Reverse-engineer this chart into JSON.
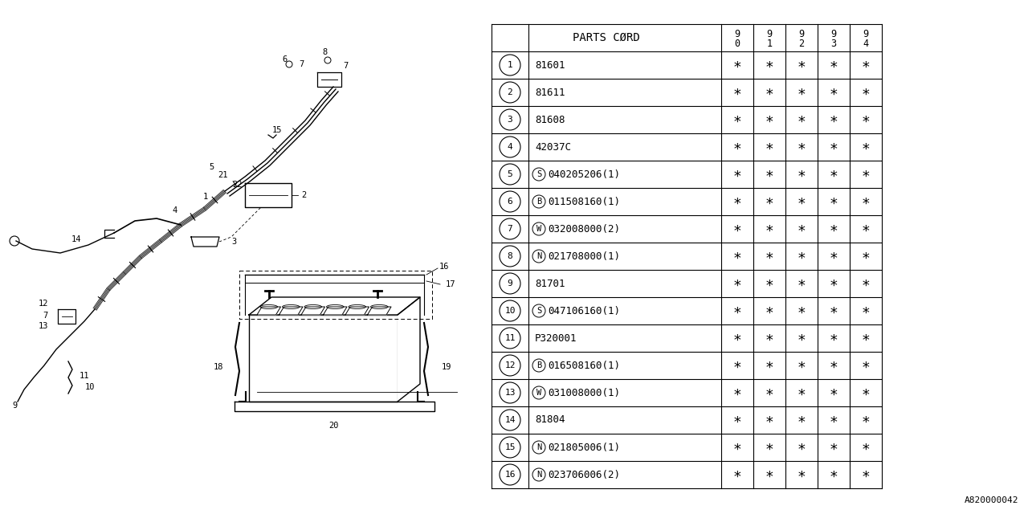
{
  "rows": [
    {
      "num": "1",
      "prefix": "",
      "ptype": "",
      "code": "81601"
    },
    {
      "num": "2",
      "prefix": "",
      "ptype": "",
      "code": "81611"
    },
    {
      "num": "3",
      "prefix": "",
      "ptype": "",
      "code": "81608"
    },
    {
      "num": "4",
      "prefix": "",
      "ptype": "",
      "code": "42037C"
    },
    {
      "num": "5",
      "prefix": "S",
      "ptype": "S",
      "code": "040205206(1)"
    },
    {
      "num": "6",
      "prefix": "B",
      "ptype": "B",
      "code": "011508160(1)"
    },
    {
      "num": "7",
      "prefix": "W",
      "ptype": "W",
      "code": "032008000(2)"
    },
    {
      "num": "8",
      "prefix": "N",
      "ptype": "N",
      "code": "021708000(1)"
    },
    {
      "num": "9",
      "prefix": "",
      "ptype": "",
      "code": "81701"
    },
    {
      "num": "10",
      "prefix": "S",
      "ptype": "S",
      "code": "047106160(1)"
    },
    {
      "num": "11",
      "prefix": "",
      "ptype": "",
      "code": "P320001"
    },
    {
      "num": "12",
      "prefix": "B",
      "ptype": "B",
      "code": "016508160(1)"
    },
    {
      "num": "13",
      "prefix": "W",
      "ptype": "W",
      "code": "031008000(1)"
    },
    {
      "num": "14",
      "prefix": "",
      "ptype": "",
      "code": "81804"
    },
    {
      "num": "15",
      "prefix": "N",
      "ptype": "N",
      "code": "021805006(1)"
    },
    {
      "num": "16",
      "prefix": "N",
      "ptype": "N",
      "code": "023706006(2)"
    }
  ],
  "table_header": "PARTS CØRD",
  "year_labels": [
    [
      "9",
      "0"
    ],
    [
      "9",
      "1"
    ],
    [
      "9",
      "2"
    ],
    [
      "9",
      "3"
    ],
    [
      "9",
      "4"
    ]
  ],
  "ref_code": "A820000042",
  "bg_color": "#ffffff",
  "line_color": "#000000"
}
